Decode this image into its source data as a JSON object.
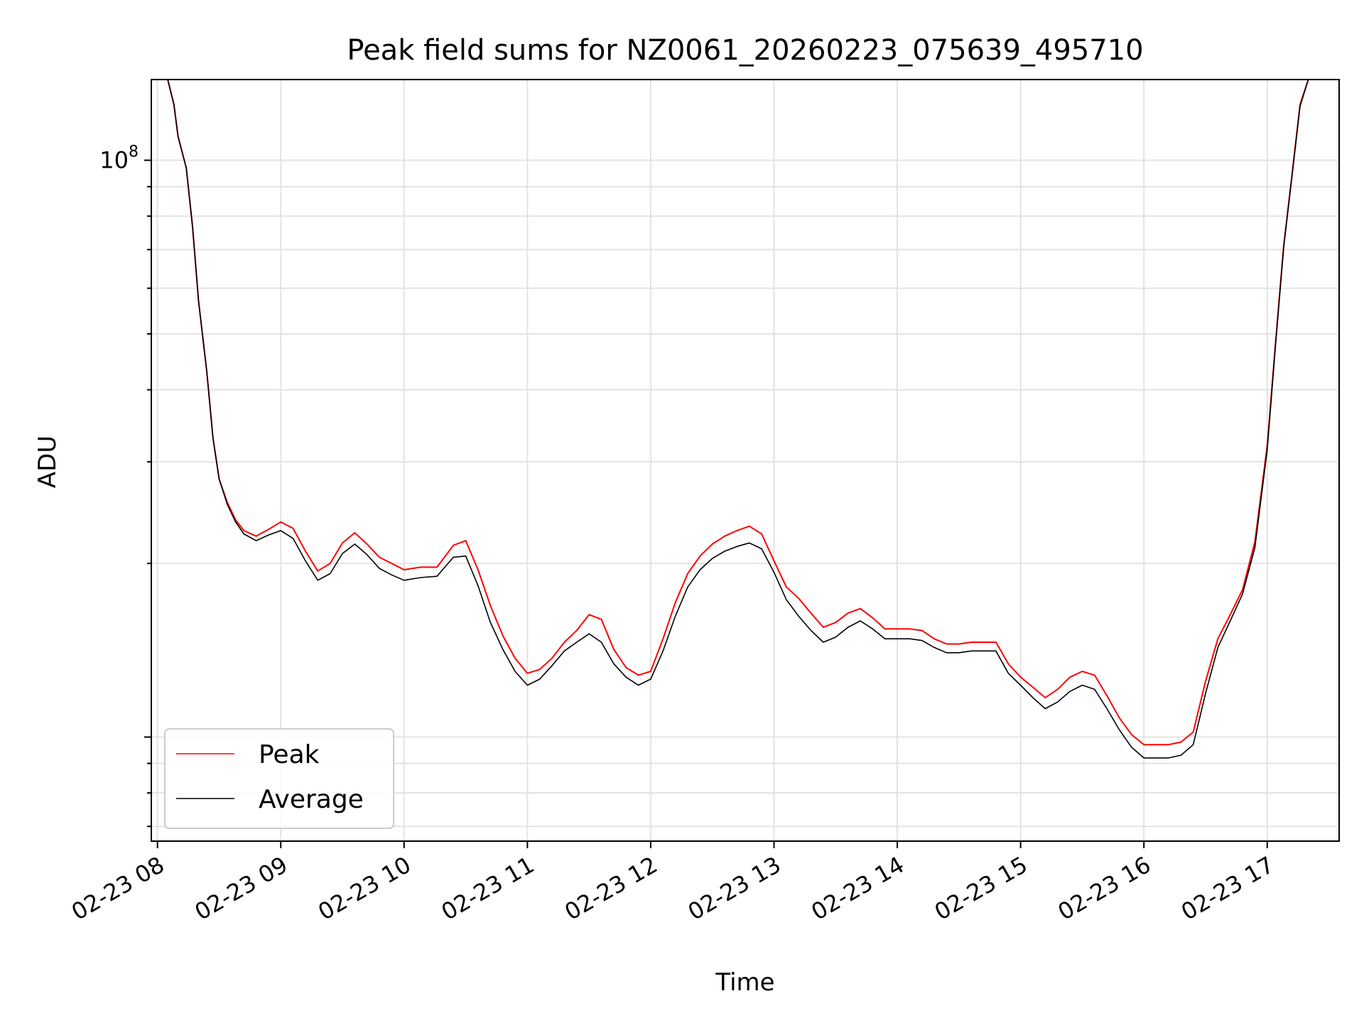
{
  "chart_data": {
    "type": "line",
    "title": "Peak field sums for NZ0061_20260223_075639_495710",
    "xlabel": "Time",
    "ylabel": "ADU",
    "yscale": "log",
    "xlim": [
      "02-23 07:57",
      "02-23 17:35"
    ],
    "ylim": [
      6600000,
      138000000
    ],
    "x_ticks": [
      "02-23 08",
      "02-23 09",
      "02-23 10",
      "02-23 11",
      "02-23 12",
      "02-23 13",
      "02-23 14",
      "02-23 15",
      "02-23 16",
      "02-23 17"
    ],
    "y_ticks": [
      {
        "value": 100000000,
        "base": "10",
        "exp": "8"
      }
    ],
    "grid": true,
    "legend_position": "lower-left",
    "x": [
      "02-23 08:05",
      "02-23 08:08",
      "02-23 08:10",
      "02-23 08:14",
      "02-23 08:17",
      "02-23 08:20",
      "02-23 08:24",
      "02-23 08:27",
      "02-23 08:30",
      "02-23 08:34",
      "02-23 08:38",
      "02-23 08:42",
      "02-23 08:48",
      "02-23 08:54",
      "02-23 09:00",
      "02-23 09:06",
      "02-23 09:12",
      "02-23 09:18",
      "02-23 09:24",
      "02-23 09:30",
      "02-23 09:36",
      "02-23 09:42",
      "02-23 09:48",
      "02-23 09:54",
      "02-23 10:00",
      "02-23 10:08",
      "02-23 10:16",
      "02-23 10:24",
      "02-23 10:30",
      "02-23 10:36",
      "02-23 10:42",
      "02-23 10:48",
      "02-23 10:54",
      "02-23 11:00",
      "02-23 11:06",
      "02-23 11:12",
      "02-23 11:18",
      "02-23 11:24",
      "02-23 11:30",
      "02-23 11:36",
      "02-23 11:42",
      "02-23 11:48",
      "02-23 11:54",
      "02-23 12:00",
      "02-23 12:06",
      "02-23 12:12",
      "02-23 12:18",
      "02-23 12:24",
      "02-23 12:30",
      "02-23 12:36",
      "02-23 12:42",
      "02-23 12:48",
      "02-23 12:54",
      "02-23 13:00",
      "02-23 13:06",
      "02-23 13:12",
      "02-23 13:18",
      "02-23 13:24",
      "02-23 13:30",
      "02-23 13:36",
      "02-23 13:42",
      "02-23 13:48",
      "02-23 13:54",
      "02-23 14:00",
      "02-23 14:06",
      "02-23 14:12",
      "02-23 14:18",
      "02-23 14:24",
      "02-23 14:30",
      "02-23 14:36",
      "02-23 14:42",
      "02-23 14:48",
      "02-23 14:54",
      "02-23 15:00",
      "02-23 15:06",
      "02-23 15:12",
      "02-23 15:18",
      "02-23 15:24",
      "02-23 15:30",
      "02-23 15:36",
      "02-23 15:42",
      "02-23 15:48",
      "02-23 15:54",
      "02-23 16:00",
      "02-23 16:06",
      "02-23 16:12",
      "02-23 16:18",
      "02-23 16:24",
      "02-23 16:30",
      "02-23 16:36",
      "02-23 16:42",
      "02-23 16:48",
      "02-23 16:54",
      "02-23 17:00",
      "02-23 17:04",
      "02-23 17:08",
      "02-23 17:12",
      "02-23 17:16",
      "02-23 17:20",
      "02-23 17:24"
    ],
    "series": [
      {
        "name": "Peak",
        "color": "#ff0000",
        "values": [
          138000000,
          125000000,
          110000000,
          97000000,
          77000000,
          57000000,
          43000000,
          33000000,
          28000000,
          25500000,
          23800000,
          22800000,
          22300000,
          22900000,
          23600000,
          23000000,
          21000000,
          19400000,
          20000000,
          21700000,
          22600000,
          21600000,
          20500000,
          20000000,
          19500000,
          19700000,
          19700000,
          21500000,
          21900000,
          19500000,
          16900000,
          15000000,
          13700000,
          12900000,
          13100000,
          13700000,
          14600000,
          15300000,
          16300000,
          16000000,
          14200000,
          13200000,
          12800000,
          13000000,
          14800000,
          17100000,
          19200000,
          20600000,
          21600000,
          22300000,
          22800000,
          23200000,
          22500000,
          20200000,
          18200000,
          17400000,
          16400000,
          15500000,
          15800000,
          16400000,
          16700000,
          16100000,
          15400000,
          15400000,
          15400000,
          15300000,
          14800000,
          14500000,
          14500000,
          14600000,
          14600000,
          14600000,
          13400000,
          12700000,
          12200000,
          11700000,
          12100000,
          12700000,
          13000000,
          12800000,
          11800000,
          10800000,
          10100000,
          9700000,
          9700000,
          9700000,
          9800000,
          10200000,
          12500000,
          14800000,
          16300000,
          18000000,
          21800000,
          32000000,
          48000000,
          71000000,
          94000000,
          125000000,
          138000000,
          138000000
        ]
      },
      {
        "name": "Average",
        "color": "#000000",
        "values": [
          138000000,
          125000000,
          110000000,
          97000000,
          77000000,
          57000000,
          43000000,
          33000000,
          28000000,
          25300000,
          23600000,
          22500000,
          21900000,
          22400000,
          22800000,
          22100000,
          20200000,
          18700000,
          19200000,
          20800000,
          21600000,
          20700000,
          19600000,
          19100000,
          18700000,
          18900000,
          19000000,
          20500000,
          20600000,
          18300000,
          15800000,
          14200000,
          13000000,
          12300000,
          12600000,
          13300000,
          14100000,
          14600000,
          15100000,
          14600000,
          13400000,
          12700000,
          12300000,
          12600000,
          14100000,
          16200000,
          18200000,
          19500000,
          20400000,
          21000000,
          21400000,
          21700000,
          21200000,
          19300000,
          17300000,
          16200000,
          15300000,
          14600000,
          14900000,
          15500000,
          15900000,
          15400000,
          14800000,
          14800000,
          14800000,
          14700000,
          14300000,
          14000000,
          14000000,
          14100000,
          14100000,
          14100000,
          12900000,
          12300000,
          11700000,
          11200000,
          11500000,
          12000000,
          12300000,
          12100000,
          11200000,
          10300000,
          9600000,
          9200000,
          9200000,
          9200000,
          9300000,
          9700000,
          11900000,
          14300000,
          15900000,
          17700000,
          21300000,
          31500000,
          47500000,
          70500000,
          93500000,
          124000000,
          138000000,
          138000000
        ]
      }
    ]
  }
}
